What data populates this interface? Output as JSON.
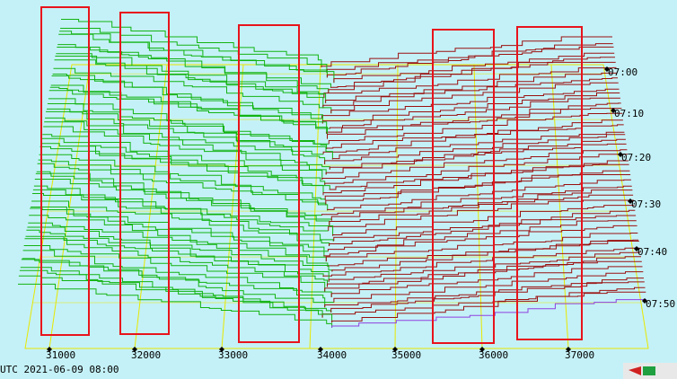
{
  "x_axis": {
    "labels": [
      "31000",
      "32000",
      "33000",
      "34000",
      "35000",
      "36000",
      "37000"
    ]
  },
  "time_axis": {
    "labels": [
      "07:00",
      "07:10",
      "07:20",
      "07:30",
      "07:40",
      "07:50"
    ]
  },
  "footer": {
    "timestamp": "UTC 2021-06-09 08:00"
  }
}
